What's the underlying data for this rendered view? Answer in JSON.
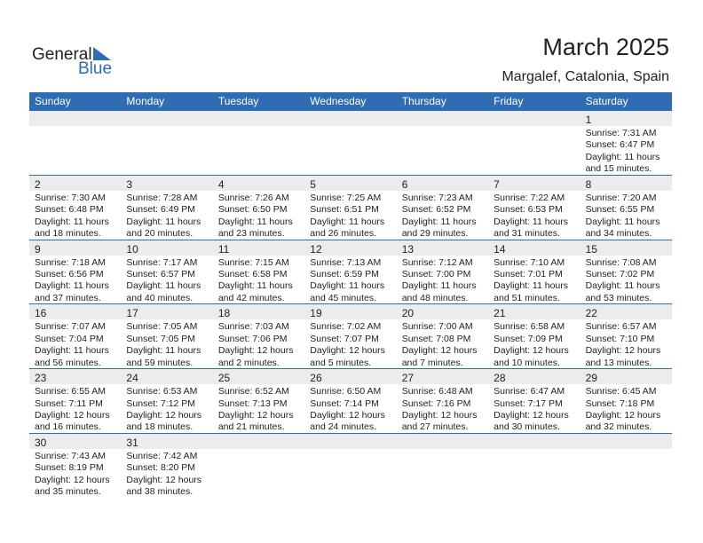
{
  "logo": {
    "word1": "General",
    "word2": "Blue"
  },
  "header": {
    "title": "March 2025",
    "subtitle": "Margalef, Catalonia, Spain"
  },
  "weekdays": [
    "Sunday",
    "Monday",
    "Tuesday",
    "Wednesday",
    "Thursday",
    "Friday",
    "Saturday"
  ],
  "weeks": [
    [
      null,
      null,
      null,
      null,
      null,
      null,
      {
        "day": 1,
        "lines": [
          "Sunrise: 7:31 AM",
          "Sunset: 6:47 PM",
          "Daylight: 11 hours",
          "and 15 minutes."
        ]
      }
    ],
    [
      {
        "day": 2,
        "lines": [
          "Sunrise: 7:30 AM",
          "Sunset: 6:48 PM",
          "Daylight: 11 hours",
          "and 18 minutes."
        ]
      },
      {
        "day": 3,
        "lines": [
          "Sunrise: 7:28 AM",
          "Sunset: 6:49 PM",
          "Daylight: 11 hours",
          "and 20 minutes."
        ]
      },
      {
        "day": 4,
        "lines": [
          "Sunrise: 7:26 AM",
          "Sunset: 6:50 PM",
          "Daylight: 11 hours",
          "and 23 minutes."
        ]
      },
      {
        "day": 5,
        "lines": [
          "Sunrise: 7:25 AM",
          "Sunset: 6:51 PM",
          "Daylight: 11 hours",
          "and 26 minutes."
        ]
      },
      {
        "day": 6,
        "lines": [
          "Sunrise: 7:23 AM",
          "Sunset: 6:52 PM",
          "Daylight: 11 hours",
          "and 29 minutes."
        ]
      },
      {
        "day": 7,
        "lines": [
          "Sunrise: 7:22 AM",
          "Sunset: 6:53 PM",
          "Daylight: 11 hours",
          "and 31 minutes."
        ]
      },
      {
        "day": 8,
        "lines": [
          "Sunrise: 7:20 AM",
          "Sunset: 6:55 PM",
          "Daylight: 11 hours",
          "and 34 minutes."
        ]
      }
    ],
    [
      {
        "day": 9,
        "lines": [
          "Sunrise: 7:18 AM",
          "Sunset: 6:56 PM",
          "Daylight: 11 hours",
          "and 37 minutes."
        ]
      },
      {
        "day": 10,
        "lines": [
          "Sunrise: 7:17 AM",
          "Sunset: 6:57 PM",
          "Daylight: 11 hours",
          "and 40 minutes."
        ]
      },
      {
        "day": 11,
        "lines": [
          "Sunrise: 7:15 AM",
          "Sunset: 6:58 PM",
          "Daylight: 11 hours",
          "and 42 minutes."
        ]
      },
      {
        "day": 12,
        "lines": [
          "Sunrise: 7:13 AM",
          "Sunset: 6:59 PM",
          "Daylight: 11 hours",
          "and 45 minutes."
        ]
      },
      {
        "day": 13,
        "lines": [
          "Sunrise: 7:12 AM",
          "Sunset: 7:00 PM",
          "Daylight: 11 hours",
          "and 48 minutes."
        ]
      },
      {
        "day": 14,
        "lines": [
          "Sunrise: 7:10 AM",
          "Sunset: 7:01 PM",
          "Daylight: 11 hours",
          "and 51 minutes."
        ]
      },
      {
        "day": 15,
        "lines": [
          "Sunrise: 7:08 AM",
          "Sunset: 7:02 PM",
          "Daylight: 11 hours",
          "and 53 minutes."
        ]
      }
    ],
    [
      {
        "day": 16,
        "lines": [
          "Sunrise: 7:07 AM",
          "Sunset: 7:04 PM",
          "Daylight: 11 hours",
          "and 56 minutes."
        ]
      },
      {
        "day": 17,
        "lines": [
          "Sunrise: 7:05 AM",
          "Sunset: 7:05 PM",
          "Daylight: 11 hours",
          "and 59 minutes."
        ]
      },
      {
        "day": 18,
        "lines": [
          "Sunrise: 7:03 AM",
          "Sunset: 7:06 PM",
          "Daylight: 12 hours",
          "and 2 minutes."
        ]
      },
      {
        "day": 19,
        "lines": [
          "Sunrise: 7:02 AM",
          "Sunset: 7:07 PM",
          "Daylight: 12 hours",
          "and 5 minutes."
        ]
      },
      {
        "day": 20,
        "lines": [
          "Sunrise: 7:00 AM",
          "Sunset: 7:08 PM",
          "Daylight: 12 hours",
          "and 7 minutes."
        ]
      },
      {
        "day": 21,
        "lines": [
          "Sunrise: 6:58 AM",
          "Sunset: 7:09 PM",
          "Daylight: 12 hours",
          "and 10 minutes."
        ]
      },
      {
        "day": 22,
        "lines": [
          "Sunrise: 6:57 AM",
          "Sunset: 7:10 PM",
          "Daylight: 12 hours",
          "and 13 minutes."
        ]
      }
    ],
    [
      {
        "day": 23,
        "lines": [
          "Sunrise: 6:55 AM",
          "Sunset: 7:11 PM",
          "Daylight: 12 hours",
          "and 16 minutes."
        ]
      },
      {
        "day": 24,
        "lines": [
          "Sunrise: 6:53 AM",
          "Sunset: 7:12 PM",
          "Daylight: 12 hours",
          "and 18 minutes."
        ]
      },
      {
        "day": 25,
        "lines": [
          "Sunrise: 6:52 AM",
          "Sunset: 7:13 PM",
          "Daylight: 12 hours",
          "and 21 minutes."
        ]
      },
      {
        "day": 26,
        "lines": [
          "Sunrise: 6:50 AM",
          "Sunset: 7:14 PM",
          "Daylight: 12 hours",
          "and 24 minutes."
        ]
      },
      {
        "day": 27,
        "lines": [
          "Sunrise: 6:48 AM",
          "Sunset: 7:16 PM",
          "Daylight: 12 hours",
          "and 27 minutes."
        ]
      },
      {
        "day": 28,
        "lines": [
          "Sunrise: 6:47 AM",
          "Sunset: 7:17 PM",
          "Daylight: 12 hours",
          "and 30 minutes."
        ]
      },
      {
        "day": 29,
        "lines": [
          "Sunrise: 6:45 AM",
          "Sunset: 7:18 PM",
          "Daylight: 12 hours",
          "and 32 minutes."
        ]
      }
    ],
    [
      {
        "day": 30,
        "lines": [
          "Sunrise: 7:43 AM",
          "Sunset: 8:19 PM",
          "Daylight: 12 hours",
          "and 35 minutes."
        ]
      },
      {
        "day": 31,
        "lines": [
          "Sunrise: 7:42 AM",
          "Sunset: 8:20 PM",
          "Daylight: 12 hours",
          "and 38 minutes."
        ]
      },
      null,
      null,
      null,
      null,
      null
    ]
  ]
}
